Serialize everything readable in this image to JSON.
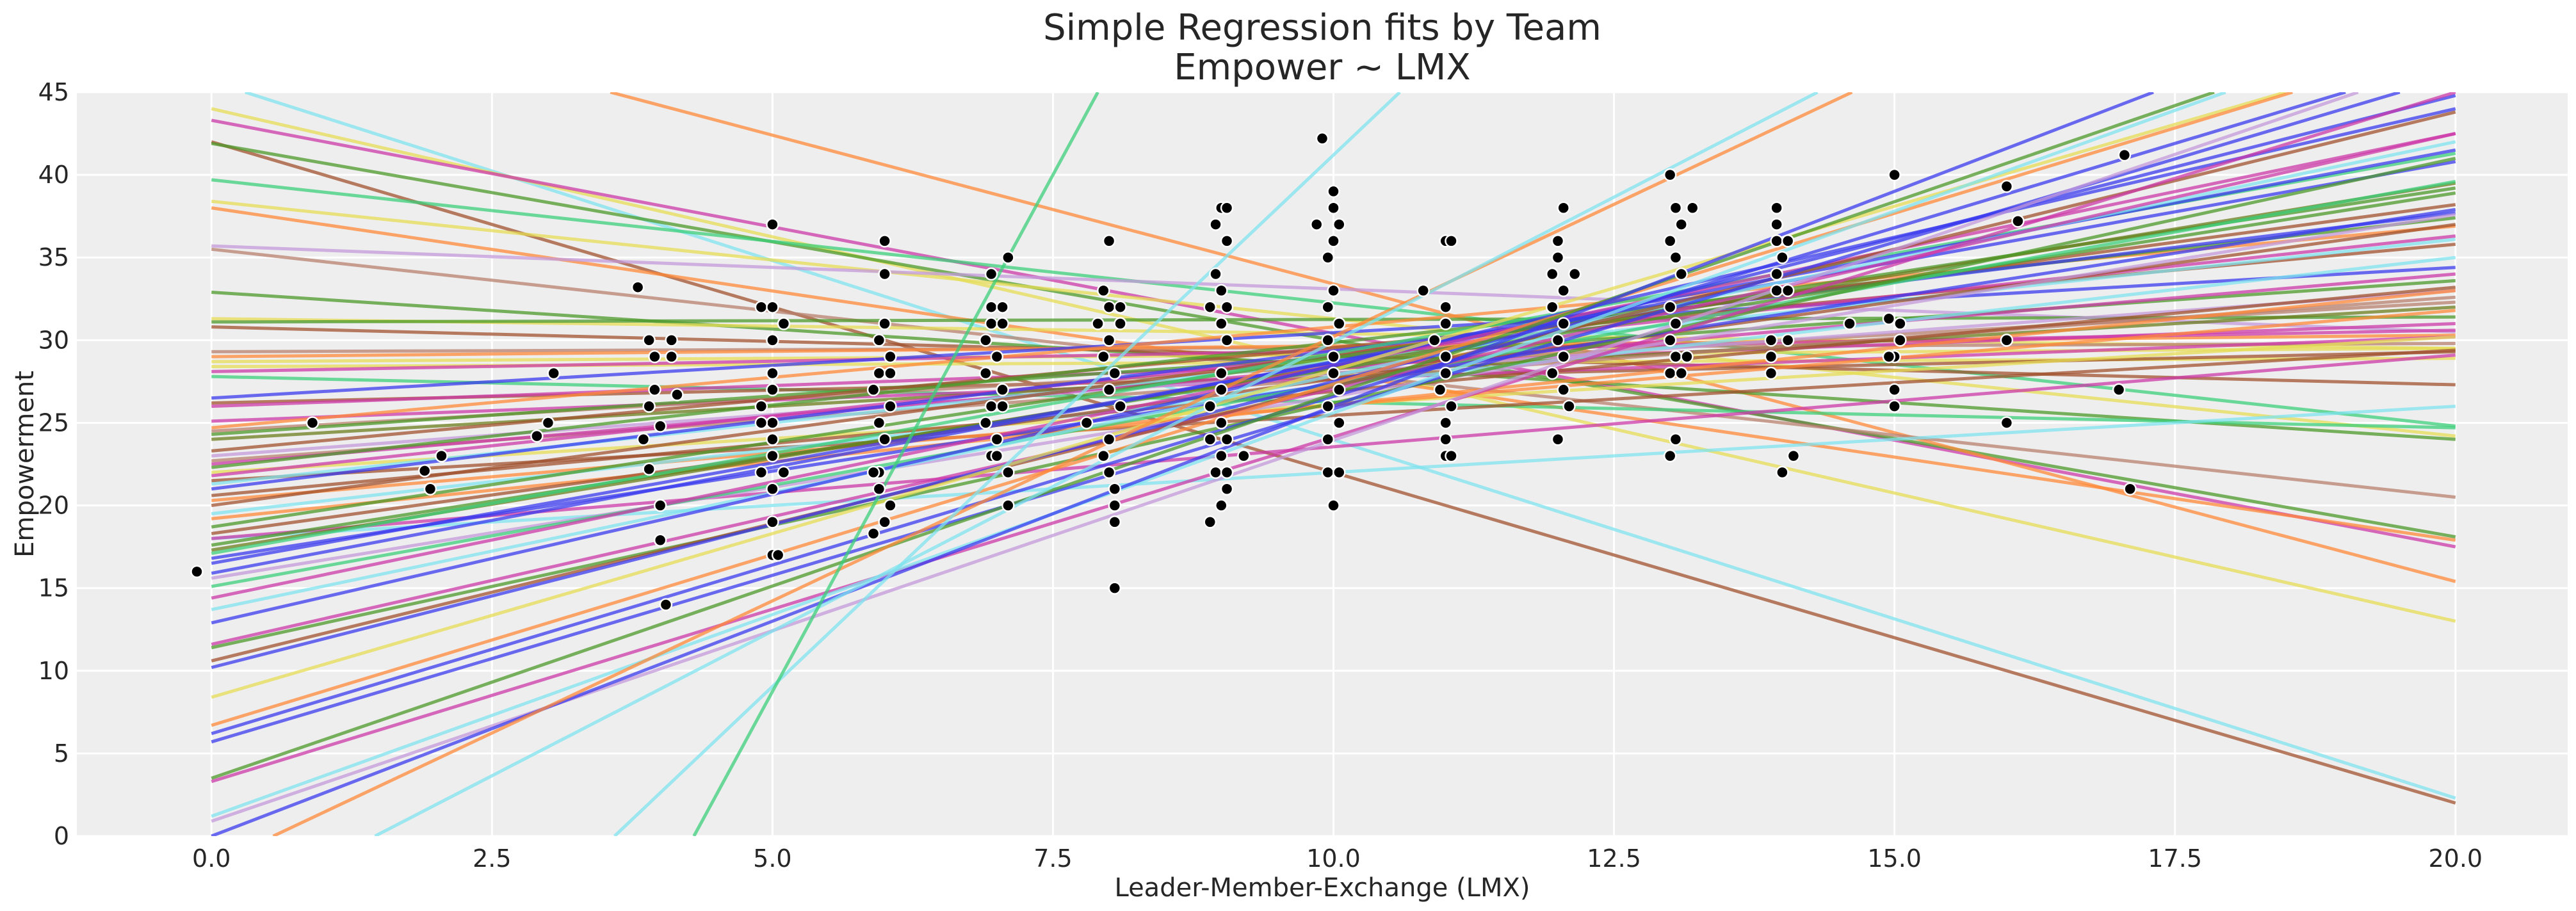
{
  "chart_data": {
    "type": "scatter",
    "title": "Simple Regression fits by Team",
    "subtitle": "Empower ~ LMX",
    "xlabel": "Leader-Member-Exchange (LMX)",
    "ylabel": "Empowerment",
    "xlim": [
      -1.2,
      21.0
    ],
    "ylim": [
      0,
      45
    ],
    "grid": true,
    "background": "#eeeeee",
    "marker_color": "#000000",
    "x_ticks": [
      "0.0",
      "2.5",
      "5.0",
      "7.5",
      "10.0",
      "12.5",
      "15.0",
      "17.5",
      "20.0"
    ],
    "y_ticks": [
      "0",
      "5",
      "10",
      "15",
      "20",
      "25",
      "30",
      "35",
      "40",
      "45"
    ],
    "palette": {
      "cyan": "#7fe3ef",
      "brown": "#a0522d",
      "yellow": "#e6dc55",
      "magenta": "#cc3aa8",
      "green": "#4c9a2a",
      "mint": "#3ccf7a",
      "orange": "#ff8a3a",
      "lilac": "#c39ad9",
      "tan": "#b8806e",
      "blue": "#3b3bef",
      "olive": "#6b7d1e"
    },
    "fit_lines_x_range": [
      0,
      20
    ],
    "fit_lines": [
      {
        "color": "cyan",
        "y_at_x0": 45.65,
        "y_at_x20": 2.3
      },
      {
        "color": "brown",
        "y_at_x0": 42.0,
        "y_at_x20": 2.0
      },
      {
        "color": "yellow",
        "y_at_x0": 44.0,
        "y_at_x20": 13.0
      },
      {
        "color": "magenta",
        "y_at_x0": 43.3,
        "y_at_x20": 17.5
      },
      {
        "color": "green",
        "y_at_x0": 41.9,
        "y_at_x20": 18.1
      },
      {
        "color": "mint",
        "y_at_x0": 39.7,
        "y_at_x20": 24.8
      },
      {
        "color": "yellow",
        "y_at_x0": 38.4,
        "y_at_x20": 24.2
      },
      {
        "color": "orange",
        "y_at_x0": 38.0,
        "y_at_x20": 17.9
      },
      {
        "color": "orange",
        "y_at_x0": 51.4,
        "y_at_x20": 15.4
      },
      {
        "color": "lilac",
        "y_at_x0": 35.7,
        "y_at_x20": 30.5
      },
      {
        "color": "tan",
        "y_at_x0": 35.5,
        "y_at_x20": 20.5
      },
      {
        "color": "green",
        "y_at_x0": 32.9,
        "y_at_x20": 24.0
      },
      {
        "color": "yellow",
        "y_at_x0": 31.3,
        "y_at_x20": 29.5
      },
      {
        "color": "green",
        "y_at_x0": 31.1,
        "y_at_x20": 31.4
      },
      {
        "color": "brown",
        "y_at_x0": 30.8,
        "y_at_x20": 27.3
      },
      {
        "color": "tan",
        "y_at_x0": 29.3,
        "y_at_x20": 29.8
      },
      {
        "color": "orange",
        "y_at_x0": 29.0,
        "y_at_x20": 30.3
      },
      {
        "color": "yellow",
        "y_at_x0": 28.7,
        "y_at_x20": 29.5
      },
      {
        "color": "yellow",
        "y_at_x0": 28.4,
        "y_at_x20": 28.9
      },
      {
        "color": "magenta",
        "y_at_x0": 28.1,
        "y_at_x20": 30.6
      },
      {
        "color": "mint",
        "y_at_x0": 27.8,
        "y_at_x20": 24.7
      },
      {
        "color": "blue",
        "y_at_x0": 26.5,
        "y_at_x20": 34.4
      },
      {
        "color": "brown",
        "y_at_x0": 26.2,
        "y_at_x20": 29.3
      },
      {
        "color": "magenta",
        "y_at_x0": 26.0,
        "y_at_x20": 31.0
      },
      {
        "color": "magenta",
        "y_at_x0": 25.1,
        "y_at_x20": 30.2
      },
      {
        "color": "orange",
        "y_at_x0": 24.7,
        "y_at_x20": 36.9
      },
      {
        "color": "tan",
        "y_at_x0": 24.5,
        "y_at_x20": 32.3
      },
      {
        "color": "green",
        "y_at_x0": 24.3,
        "y_at_x20": 33.6
      },
      {
        "color": "olive",
        "y_at_x0": 24.0,
        "y_at_x20": 32.0
      },
      {
        "color": "brown",
        "y_at_x0": 23.3,
        "y_at_x20": 35.8
      },
      {
        "color": "lilac",
        "y_at_x0": 23.0,
        "y_at_x20": 33.0
      },
      {
        "color": "tan",
        "y_at_x0": 22.7,
        "y_at_x20": 32.6
      },
      {
        "color": "magenta",
        "y_at_x0": 22.5,
        "y_at_x20": 34.0
      },
      {
        "color": "green",
        "y_at_x0": 22.3,
        "y_at_x20": 37.4
      },
      {
        "color": "yellow",
        "y_at_x0": 22.0,
        "y_at_x20": 30.2
      },
      {
        "color": "magenta",
        "y_at_x0": 21.8,
        "y_at_x20": 36.3
      },
      {
        "color": "brown",
        "y_at_x0": 21.5,
        "y_at_x20": 29.4
      },
      {
        "color": "cyan",
        "y_at_x0": 21.3,
        "y_at_x20": 36.1
      },
      {
        "color": "blue",
        "y_at_x0": 21.0,
        "y_at_x20": 37.7
      },
      {
        "color": "brown",
        "y_at_x0": 20.6,
        "y_at_x20": 33.2
      },
      {
        "color": "orange",
        "y_at_x0": 20.3,
        "y_at_x20": 31.8
      },
      {
        "color": "brown",
        "y_at_x0": 20.0,
        "y_at_x20": 38.2
      },
      {
        "color": "cyan",
        "y_at_x0": 19.5,
        "y_at_x20": 35.0
      },
      {
        "color": "orange",
        "y_at_x0": 19.2,
        "y_at_x20": 33.0
      },
      {
        "color": "green",
        "y_at_x0": 18.7,
        "y_at_x20": 39.2
      },
      {
        "color": "brown",
        "y_at_x0": 18.3,
        "y_at_x20": 37.0
      },
      {
        "color": "cyan",
        "y_at_x0": 18.0,
        "y_at_x20": 26.0
      },
      {
        "color": "magenta",
        "y_at_x0": 18.0,
        "y_at_x20": 29.1
      },
      {
        "color": "green",
        "y_at_x0": 17.6,
        "y_at_x20": 38.9
      },
      {
        "color": "olive",
        "y_at_x0": 17.3,
        "y_at_x20": 39.5
      },
      {
        "color": "mint",
        "y_at_x0": 17.1,
        "y_at_x20": 41.3
      },
      {
        "color": "blue",
        "y_at_x0": 16.8,
        "y_at_x20": 37.9
      },
      {
        "color": "blue",
        "y_at_x0": 16.5,
        "y_at_x20": 40.8
      },
      {
        "color": "blue",
        "y_at_x0": 15.9,
        "y_at_x20": 41.5
      },
      {
        "color": "lilac",
        "y_at_x0": 15.6,
        "y_at_x20": 37.6
      },
      {
        "color": "mint",
        "y_at_x0": 15.1,
        "y_at_x20": 39.6
      },
      {
        "color": "magenta",
        "y_at_x0": 14.4,
        "y_at_x20": 42.5
      },
      {
        "color": "cyan",
        "y_at_x0": 13.7,
        "y_at_x20": 42.0
      },
      {
        "color": "blue",
        "y_at_x0": 12.9,
        "y_at_x20": 44.0
      },
      {
        "color": "magenta",
        "y_at_x0": 11.6,
        "y_at_x20": 42.5
      },
      {
        "color": "green",
        "y_at_x0": 11.4,
        "y_at_x20": 41.0
      },
      {
        "color": "brown",
        "y_at_x0": 10.6,
        "y_at_x20": 43.8
      },
      {
        "color": "blue",
        "y_at_x0": 10.2,
        "y_at_x20": 44.8
      },
      {
        "color": "yellow",
        "y_at_x0": 8.4,
        "y_at_x20": 48.0
      },
      {
        "color": "orange",
        "y_at_x0": 6.7,
        "y_at_x20": 48.0
      },
      {
        "color": "blue",
        "y_at_x0": 6.2,
        "y_at_x20": 47.0
      },
      {
        "color": "blue",
        "y_at_x0": 5.7,
        "y_at_x20": 46.0
      },
      {
        "color": "green",
        "y_at_x0": 3.5,
        "y_at_x20": 50.0
      },
      {
        "color": "magenta",
        "y_at_x0": 3.3,
        "y_at_x20": 45.0
      },
      {
        "color": "cyan",
        "y_at_x0": 1.2,
        "y_at_x20": 50.0
      },
      {
        "color": "lilac",
        "y_at_x0": 0.9,
        "y_at_x20": 47.0
      },
      {
        "color": "blue",
        "y_at_x0": 0.0,
        "y_at_x20": 52.0
      },
      {
        "color": "orange",
        "y_at_x0": -1.76,
        "y_at_x20": 62.2
      },
      {
        "color": "cyan",
        "y_at_x0": -5.1,
        "y_at_x20": 64.9
      },
      {
        "color": "cyan",
        "y_at_x0": -23.1,
        "y_at_x20": 105.5
      },
      {
        "color": "mint",
        "y_at_x0": -53.75,
        "y_at_x20": 196.25
      }
    ],
    "points": [
      [
        -0.13,
        16
      ],
      [
        0.9,
        25
      ],
      [
        1.9,
        22.1
      ],
      [
        1.95,
        21
      ],
      [
        2.05,
        23
      ],
      [
        2.9,
        24.2
      ],
      [
        3.05,
        28
      ],
      [
        3,
        25
      ],
      [
        3.8,
        33.2
      ],
      [
        3.9,
        30
      ],
      [
        3.95,
        29
      ],
      [
        3.95,
        27
      ],
      [
        3.9,
        26
      ],
      [
        3.85,
        24
      ],
      [
        3.9,
        22.2
      ],
      [
        4,
        20
      ],
      [
        4,
        17.9
      ],
      [
        4.05,
        14
      ],
      [
        4.1,
        30
      ],
      [
        4.1,
        29
      ],
      [
        4.15,
        26.7
      ],
      [
        4,
        24.8
      ],
      [
        5,
        37
      ],
      [
        4.9,
        32
      ],
      [
        5,
        32
      ],
      [
        5.1,
        31
      ],
      [
        5,
        30
      ],
      [
        5,
        28
      ],
      [
        5,
        27
      ],
      [
        4.9,
        26
      ],
      [
        5,
        25
      ],
      [
        4.9,
        25
      ],
      [
        5,
        24
      ],
      [
        5,
        23
      ],
      [
        4.9,
        22
      ],
      [
        5.1,
        22
      ],
      [
        5,
        21
      ],
      [
        5,
        19
      ],
      [
        5,
        17
      ],
      [
        5.05,
        17
      ],
      [
        6,
        36
      ],
      [
        6,
        34
      ],
      [
        6,
        31
      ],
      [
        5.95,
        30
      ],
      [
        6.05,
        29
      ],
      [
        5.95,
        28
      ],
      [
        6.05,
        28
      ],
      [
        5.9,
        27
      ],
      [
        6.05,
        26
      ],
      [
        5.95,
        25
      ],
      [
        6,
        24
      ],
      [
        5.95,
        22
      ],
      [
        5.9,
        22
      ],
      [
        5.95,
        21
      ],
      [
        6.05,
        20
      ],
      [
        5.9,
        18.3
      ],
      [
        6,
        19
      ],
      [
        7.1,
        35
      ],
      [
        6.95,
        34
      ],
      [
        6.95,
        32
      ],
      [
        7.05,
        32
      ],
      [
        6.95,
        31
      ],
      [
        7.05,
        31
      ],
      [
        6.9,
        30
      ],
      [
        7,
        29
      ],
      [
        6.9,
        28
      ],
      [
        7.05,
        27
      ],
      [
        6.95,
        26
      ],
      [
        7.05,
        26
      ],
      [
        6.9,
        25
      ],
      [
        7,
        24
      ],
      [
        6.95,
        23
      ],
      [
        7.1,
        22
      ],
      [
        7.1,
        20
      ],
      [
        7,
        23
      ],
      [
        8,
        36
      ],
      [
        7.95,
        33
      ],
      [
        8,
        32
      ],
      [
        8.1,
        32
      ],
      [
        7.9,
        31
      ],
      [
        8.1,
        31
      ],
      [
        8,
        30
      ],
      [
        7.95,
        29
      ],
      [
        8.05,
        28
      ],
      [
        8,
        27
      ],
      [
        8.1,
        26
      ],
      [
        7.8,
        25
      ],
      [
        8,
        24
      ],
      [
        7.95,
        23
      ],
      [
        8,
        22
      ],
      [
        8.05,
        21
      ],
      [
        8.05,
        20
      ],
      [
        8.05,
        19
      ],
      [
        8.05,
        15
      ],
      [
        9,
        38
      ],
      [
        9.05,
        38
      ],
      [
        8.95,
        37
      ],
      [
        9.05,
        36
      ],
      [
        8.95,
        34
      ],
      [
        9,
        33
      ],
      [
        8.9,
        32
      ],
      [
        9.05,
        32
      ],
      [
        9,
        31
      ],
      [
        9.05,
        30
      ],
      [
        9,
        28
      ],
      [
        9,
        27
      ],
      [
        8.9,
        26
      ],
      [
        9,
        25
      ],
      [
        8.9,
        24
      ],
      [
        9.05,
        24
      ],
      [
        9,
        23
      ],
      [
        8.95,
        22
      ],
      [
        9.05,
        22
      ],
      [
        9.05,
        21
      ],
      [
        9,
        20
      ],
      [
        8.9,
        19
      ],
      [
        9.2,
        23
      ],
      [
        9.9,
        42.2
      ],
      [
        10,
        39
      ],
      [
        10,
        38
      ],
      [
        10.05,
        37
      ],
      [
        9.85,
        37
      ],
      [
        10,
        36
      ],
      [
        9.95,
        35
      ],
      [
        10,
        33
      ],
      [
        9.95,
        32
      ],
      [
        10.05,
        31
      ],
      [
        9.95,
        30
      ],
      [
        10,
        29
      ],
      [
        10,
        28
      ],
      [
        10.05,
        27
      ],
      [
        9.95,
        26
      ],
      [
        10.05,
        25
      ],
      [
        9.95,
        24
      ],
      [
        9.95,
        22
      ],
      [
        10.05,
        22
      ],
      [
        10,
        20
      ],
      [
        11,
        36
      ],
      [
        11.05,
        36
      ],
      [
        10.8,
        33
      ],
      [
        11,
        32
      ],
      [
        11,
        31
      ],
      [
        10.9,
        30
      ],
      [
        11,
        29
      ],
      [
        11,
        28
      ],
      [
        10.95,
        27
      ],
      [
        11.05,
        26
      ],
      [
        11,
        25
      ],
      [
        11,
        24
      ],
      [
        11,
        23
      ],
      [
        11.05,
        23
      ],
      [
        12.05,
        38
      ],
      [
        12,
        36
      ],
      [
        12,
        35
      ],
      [
        11.95,
        34
      ],
      [
        12.05,
        33
      ],
      [
        11.95,
        32
      ],
      [
        12.05,
        31
      ],
      [
        12,
        30
      ],
      [
        12.05,
        29
      ],
      [
        11.95,
        28
      ],
      [
        12.05,
        27
      ],
      [
        12.1,
        26
      ],
      [
        12,
        24
      ],
      [
        12.15,
        34
      ],
      [
        13,
        40
      ],
      [
        13.05,
        38
      ],
      [
        13.2,
        38
      ],
      [
        13.1,
        37
      ],
      [
        13,
        36
      ],
      [
        13.05,
        35
      ],
      [
        13.1,
        34
      ],
      [
        13,
        32
      ],
      [
        13.05,
        31
      ],
      [
        13,
        30
      ],
      [
        13.05,
        29
      ],
      [
        13.15,
        29
      ],
      [
        13,
        28
      ],
      [
        13.1,
        28
      ],
      [
        13,
        23
      ],
      [
        13.05,
        24
      ],
      [
        13.95,
        38
      ],
      [
        13.95,
        37
      ],
      [
        13.95,
        36
      ],
      [
        14.05,
        36
      ],
      [
        14,
        35
      ],
      [
        13.95,
        34
      ],
      [
        13.95,
        33
      ],
      [
        14.05,
        33
      ],
      [
        13.9,
        30
      ],
      [
        14.05,
        30
      ],
      [
        13.9,
        29
      ],
      [
        13.9,
        28
      ],
      [
        14.1,
        23
      ],
      [
        14,
        22
      ],
      [
        15,
        40
      ],
      [
        14.95,
        31.3
      ],
      [
        15.05,
        31
      ],
      [
        15,
        29
      ],
      [
        14.95,
        29
      ],
      [
        15,
        27
      ],
      [
        15,
        26
      ],
      [
        14.6,
        31
      ],
      [
        15.05,
        30
      ],
      [
        16,
        39.3
      ],
      [
        16.1,
        37.2
      ],
      [
        16,
        30
      ],
      [
        16,
        25
      ],
      [
        17.05,
        41.2
      ],
      [
        17,
        27
      ],
      [
        17.1,
        21
      ]
    ]
  }
}
